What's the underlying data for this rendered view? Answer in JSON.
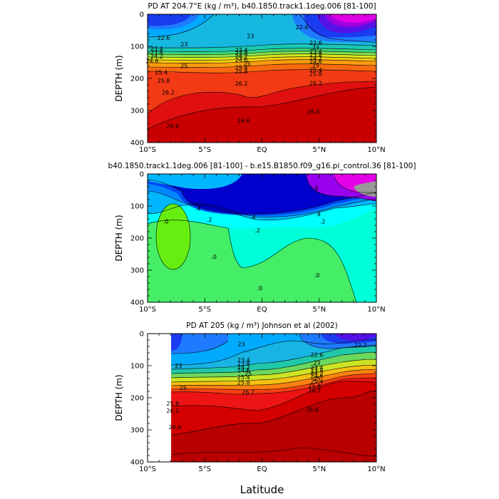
{
  "chart_data": [
    {
      "type": "contour",
      "title": "PD AT 204.7°E (kg / m³), b40.1850.track1.1deg.006 [81-100]",
      "ylabel": "DEPTH (m)",
      "xlabel": "",
      "x_ticks": [
        "10°S",
        "5°S",
        "EQ",
        "5°N",
        "10°N"
      ],
      "y_ticks": [
        "0",
        "100",
        "200",
        "300",
        "400"
      ],
      "xlim": [
        -10,
        10
      ],
      "ylim": [
        400,
        0
      ],
      "contour_labels": [
        {
          "text": "22.6",
          "lat": -8.6,
          "depth": 73
        },
        {
          "text": "23",
          "lat": -6.8,
          "depth": 93
        },
        {
          "text": "23",
          "lat": -1.0,
          "depth": 68
        },
        {
          "text": "23.4",
          "lat": -9.2,
          "depth": 107
        },
        {
          "text": "23.8",
          "lat": -9.2,
          "depth": 119
        },
        {
          "text": "24.2",
          "lat": -9.2,
          "depth": 131
        },
        {
          "text": "24.6",
          "lat": -9.6,
          "depth": 145
        },
        {
          "text": "25",
          "lat": -6.8,
          "depth": 161
        },
        {
          "text": "25.4",
          "lat": -8.8,
          "depth": 181
        },
        {
          "text": "25.8",
          "lat": -8.6,
          "depth": 207
        },
        {
          "text": "26.2",
          "lat": -8.2,
          "depth": 243
        },
        {
          "text": "26.6",
          "lat": -7.8,
          "depth": 348
        },
        {
          "text": "23.4",
          "lat": -1.8,
          "depth": 111
        },
        {
          "text": "23.8",
          "lat": -1.8,
          "depth": 121
        },
        {
          "text": "24.2",
          "lat": -1.8,
          "depth": 131
        },
        {
          "text": "24.6",
          "lat": -1.8,
          "depth": 142
        },
        {
          "text": "25",
          "lat": -1.3,
          "depth": 153
        },
        {
          "text": "25.4",
          "lat": -1.8,
          "depth": 166
        },
        {
          "text": "25.8",
          "lat": -1.8,
          "depth": 178
        },
        {
          "text": "26.2",
          "lat": -1.8,
          "depth": 216
        },
        {
          "text": "26.6",
          "lat": -1.6,
          "depth": 331
        },
        {
          "text": "22.6",
          "lat": 3.5,
          "depth": 40
        },
        {
          "text": "22.6",
          "lat": 4.7,
          "depth": 89
        },
        {
          "text": "23",
          "lat": 4.7,
          "depth": 103
        },
        {
          "text": "23.4",
          "lat": 4.7,
          "depth": 115
        },
        {
          "text": "23.8",
          "lat": 4.7,
          "depth": 127
        },
        {
          "text": "24.2",
          "lat": 4.7,
          "depth": 137
        },
        {
          "text": "24.6",
          "lat": 4.7,
          "depth": 147
        },
        {
          "text": "25",
          "lat": 4.7,
          "depth": 159
        },
        {
          "text": "25.4",
          "lat": 4.7,
          "depth": 173
        },
        {
          "text": "25.8",
          "lat": 4.7,
          "depth": 185
        },
        {
          "text": "26.2",
          "lat": 4.7,
          "depth": 214
        },
        {
          "text": "26.6",
          "lat": 4.5,
          "depth": 303
        }
      ]
    },
    {
      "type": "contour",
      "title": "b40.1850.track1.1deg.006 [81-100] - b.e15.B1850.f09_g16.pi_control.36 [81-100]",
      "ylabel": "DEPTH (m)",
      "xlabel": "",
      "x_ticks": [
        "10°S",
        "5°S",
        "EQ",
        "5°N",
        "10°N"
      ],
      "y_ticks": [
        "0",
        "100",
        "200",
        "300",
        "400"
      ],
      "xlim": [
        -10,
        10
      ],
      "ylim": [
        400,
        0
      ],
      "contour_labels": [
        {
          "text": ".4",
          "lat": -5.6,
          "depth": 108
        },
        {
          "text": ".2",
          "lat": -4.6,
          "depth": 142
        },
        {
          "text": ".0",
          "lat": -8.4,
          "depth": 148
        },
        {
          "text": ".0",
          "lat": -4.2,
          "depth": 258
        },
        {
          "text": ".4",
          "lat": -0.8,
          "depth": 133
        },
        {
          "text": ".2",
          "lat": -0.4,
          "depth": 176
        },
        {
          "text": ".0",
          "lat": -0.2,
          "depth": 355
        },
        {
          "text": ".0",
          "lat": 4.8,
          "depth": 316
        },
        {
          "text": ".4",
          "lat": 4.9,
          "depth": 126
        },
        {
          "text": ".2",
          "lat": 5.3,
          "depth": 148
        },
        {
          "text": ".6",
          "lat": 4.7,
          "depth": 43
        }
      ]
    },
    {
      "type": "contour",
      "title": "PD AT 205 (kg / m³) Johnson et al (2002)",
      "ylabel": "DEPTH (m)",
      "xlabel": "Latitude",
      "x_ticks": [
        "10°S",
        "5°S",
        "EQ",
        "5°N",
        "10°N"
      ],
      "y_ticks": [
        "0",
        "100",
        "200",
        "300",
        "400"
      ],
      "xlim": [
        -10,
        10
      ],
      "ylim": [
        400,
        0
      ],
      "data_xlim": [
        -8,
        10
      ],
      "contour_labels": [
        {
          "text": "23",
          "lat": -7.3,
          "depth": 100
        },
        {
          "text": "25",
          "lat": -6.9,
          "depth": 169
        },
        {
          "text": "25.8",
          "lat": -7.8,
          "depth": 218
        },
        {
          "text": "26.2",
          "lat": -7.8,
          "depth": 240
        },
        {
          "text": "26.6",
          "lat": -7.6,
          "depth": 291
        },
        {
          "text": "23",
          "lat": -1.8,
          "depth": 32
        },
        {
          "text": "23.4",
          "lat": -1.6,
          "depth": 82
        },
        {
          "text": "23.8",
          "lat": -1.6,
          "depth": 93
        },
        {
          "text": "24.2",
          "lat": -1.6,
          "depth": 104
        },
        {
          "text": "24.6",
          "lat": -1.6,
          "depth": 114
        },
        {
          "text": "25",
          "lat": -1.2,
          "depth": 124
        },
        {
          "text": "25.4",
          "lat": -1.6,
          "depth": 136
        },
        {
          "text": "25.8",
          "lat": -1.6,
          "depth": 152
        },
        {
          "text": "26.2",
          "lat": -1.2,
          "depth": 182
        },
        {
          "text": "22.2",
          "lat": 8.6,
          "depth": 36
        },
        {
          "text": "22.6",
          "lat": 4.8,
          "depth": 65
        },
        {
          "text": "23",
          "lat": 4.8,
          "depth": 91
        },
        {
          "text": "23.4",
          "lat": 4.8,
          "depth": 106
        },
        {
          "text": "23.8",
          "lat": 4.8,
          "depth": 114
        },
        {
          "text": "24.2",
          "lat": 4.8,
          "depth": 123
        },
        {
          "text": "24.6",
          "lat": 4.8,
          "depth": 131
        },
        {
          "text": "25",
          "lat": 4.8,
          "depth": 140
        },
        {
          "text": "25.4",
          "lat": 4.8,
          "depth": 149
        },
        {
          "text": "25.8",
          "lat": 4.6,
          "depth": 163
        },
        {
          "text": "26.2",
          "lat": 4.6,
          "depth": 177
        },
        {
          "text": "26.6",
          "lat": 4.4,
          "depth": 237
        }
      ]
    }
  ]
}
